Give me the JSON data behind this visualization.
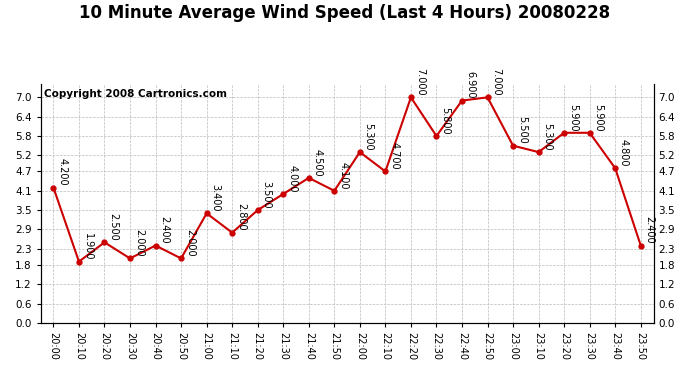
{
  "title": "10 Minute Average Wind Speed (Last 4 Hours) 20080228",
  "copyright": "Copyright 2008 Cartronics.com",
  "x_labels": [
    "20:00",
    "20:10",
    "20:20",
    "20:30",
    "20:40",
    "20:50",
    "21:00",
    "21:10",
    "21:20",
    "21:30",
    "21:40",
    "21:50",
    "22:00",
    "22:10",
    "22:20",
    "22:30",
    "22:40",
    "22:50",
    "23:00",
    "23:10",
    "23:20",
    "23:30",
    "23:40",
    "23:50"
  ],
  "y_values": [
    4.2,
    1.9,
    2.5,
    2.0,
    2.4,
    2.0,
    3.4,
    2.8,
    3.5,
    4.0,
    4.5,
    4.1,
    5.3,
    4.7,
    7.0,
    5.8,
    6.9,
    7.0,
    5.5,
    5.3,
    5.9,
    5.9,
    4.8,
    2.4
  ],
  "annotations": [
    "4.200",
    "1.900",
    "2.500",
    "2.000",
    "2.400",
    "2.000",
    "3.400",
    "2.800",
    "3.500",
    "4.000",
    "4.500",
    "4.100",
    "5.300",
    "4.700",
    "7.000",
    "5.800",
    "6.900",
    "7.000",
    "5.500",
    "5.300",
    "5.900",
    "5.900",
    "4.800",
    "2.400"
  ],
  "line_color": "#cc0000",
  "marker_color": "#cc0000",
  "bg_color": "#ffffff",
  "plot_bg_color": "#ffffff",
  "grid_color": "#bbbbbb",
  "title_fontsize": 12,
  "copyright_fontsize": 7.5,
  "annotation_fontsize": 7,
  "ylim": [
    0.0,
    7.4
  ],
  "yticks": [
    0.0,
    0.6,
    1.2,
    1.8,
    2.3,
    2.9,
    3.5,
    4.1,
    4.7,
    5.2,
    5.8,
    6.4,
    7.0
  ]
}
